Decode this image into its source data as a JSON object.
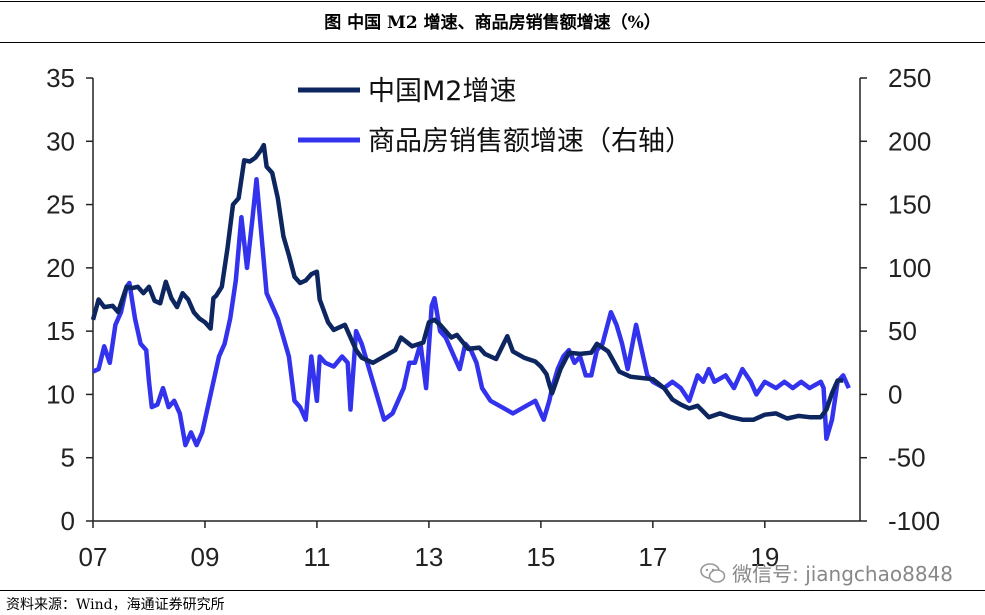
{
  "header": {
    "title": "图  中国 M2 增速、商品房销售额增速（%）"
  },
  "footer": {
    "source": "资料来源：Wind，海通证券研究所"
  },
  "watermark": {
    "text": "微信号: jiangchao8848",
    "icon": "wechat-logo-icon"
  },
  "chart_data": {
    "type": "line",
    "title": "中国 M2 增速、商品房销售额增速（%）",
    "x_tick_labels": [
      "07",
      "09",
      "11",
      "13",
      "15",
      "17",
      "19"
    ],
    "x_ticks": [
      2007,
      2009,
      2011,
      2013,
      2015,
      2017,
      2019
    ],
    "xlim": [
      2007,
      2020.7
    ],
    "y_left": {
      "lim": [
        0,
        35
      ],
      "ticks": [
        0,
        5,
        10,
        15,
        20,
        25,
        30,
        35
      ]
    },
    "y_right": {
      "lim": [
        -100,
        250
      ],
      "ticks": [
        -100,
        -50,
        0,
        50,
        100,
        150,
        200,
        250
      ]
    },
    "grid": false,
    "legend_placement": "top-center",
    "series": [
      {
        "name": "中国M2增速",
        "axis": "left",
        "color": "#0d2660",
        "points": [
          [
            2007.0,
            15.9
          ],
          [
            2007.1,
            17.5
          ],
          [
            2007.2,
            16.9
          ],
          [
            2007.35,
            17.0
          ],
          [
            2007.45,
            16.5
          ],
          [
            2007.5,
            17.2
          ],
          [
            2007.6,
            18.5
          ],
          [
            2007.7,
            18.4
          ],
          [
            2007.8,
            18.5
          ],
          [
            2007.9,
            18.0
          ],
          [
            2008.0,
            18.5
          ],
          [
            2008.1,
            17.4
          ],
          [
            2008.2,
            17.2
          ],
          [
            2008.3,
            18.9
          ],
          [
            2008.4,
            17.6
          ],
          [
            2008.5,
            16.9
          ],
          [
            2008.6,
            18.0
          ],
          [
            2008.7,
            17.5
          ],
          [
            2008.8,
            16.5
          ],
          [
            2008.9,
            16.0
          ],
          [
            2009.0,
            15.7
          ],
          [
            2009.1,
            15.2
          ],
          [
            2009.15,
            17.6
          ],
          [
            2009.2,
            17.8
          ],
          [
            2009.3,
            18.5
          ],
          [
            2009.4,
            21.5
          ],
          [
            2009.5,
            25.0
          ],
          [
            2009.6,
            25.5
          ],
          [
            2009.7,
            28.5
          ],
          [
            2009.8,
            28.4
          ],
          [
            2009.9,
            28.7
          ],
          [
            2010.0,
            29.3
          ],
          [
            2010.05,
            29.7
          ],
          [
            2010.1,
            28.0
          ],
          [
            2010.2,
            27.5
          ],
          [
            2010.3,
            25.5
          ],
          [
            2010.4,
            22.5
          ],
          [
            2010.5,
            21.0
          ],
          [
            2010.6,
            19.3
          ],
          [
            2010.7,
            18.8
          ],
          [
            2010.8,
            19.0
          ],
          [
            2010.9,
            19.5
          ],
          [
            2011.0,
            19.7
          ],
          [
            2011.05,
            17.5
          ],
          [
            2011.2,
            15.7
          ],
          [
            2011.3,
            15.1
          ],
          [
            2011.5,
            15.5
          ],
          [
            2011.6,
            14.5
          ],
          [
            2011.7,
            13.5
          ],
          [
            2011.8,
            12.9
          ],
          [
            2012.0,
            12.5
          ],
          [
            2012.2,
            13.0
          ],
          [
            2012.4,
            13.5
          ],
          [
            2012.5,
            14.5
          ],
          [
            2012.7,
            13.8
          ],
          [
            2012.9,
            14.1
          ],
          [
            2013.0,
            15.7
          ],
          [
            2013.1,
            15.9
          ],
          [
            2013.2,
            15.5
          ],
          [
            2013.4,
            14.5
          ],
          [
            2013.5,
            14.7
          ],
          [
            2013.7,
            13.6
          ],
          [
            2013.9,
            13.7
          ],
          [
            2014.0,
            13.2
          ],
          [
            2014.2,
            12.8
          ],
          [
            2014.4,
            14.6
          ],
          [
            2014.5,
            13.4
          ],
          [
            2014.7,
            12.9
          ],
          [
            2014.9,
            12.6
          ],
          [
            2015.0,
            12.2
          ],
          [
            2015.1,
            11.6
          ],
          [
            2015.15,
            10.8
          ],
          [
            2015.2,
            10.1
          ],
          [
            2015.35,
            12.0
          ],
          [
            2015.5,
            13.3
          ],
          [
            2015.7,
            13.2
          ],
          [
            2015.9,
            13.3
          ],
          [
            2016.0,
            14.0
          ],
          [
            2016.2,
            13.4
          ],
          [
            2016.4,
            11.8
          ],
          [
            2016.6,
            11.4
          ],
          [
            2016.8,
            11.3
          ],
          [
            2017.0,
            11.2
          ],
          [
            2017.2,
            10.5
          ],
          [
            2017.35,
            9.6
          ],
          [
            2017.5,
            9.2
          ],
          [
            2017.65,
            8.9
          ],
          [
            2017.8,
            9.1
          ],
          [
            2018.0,
            8.2
          ],
          [
            2018.2,
            8.5
          ],
          [
            2018.4,
            8.2
          ],
          [
            2018.6,
            8.0
          ],
          [
            2018.8,
            8.0
          ],
          [
            2019.0,
            8.4
          ],
          [
            2019.2,
            8.5
          ],
          [
            2019.4,
            8.1
          ],
          [
            2019.6,
            8.3
          ],
          [
            2019.8,
            8.2
          ],
          [
            2020.0,
            8.2
          ],
          [
            2020.1,
            8.8
          ],
          [
            2020.2,
            10.1
          ],
          [
            2020.3,
            11.1
          ],
          [
            2020.4,
            11.1
          ]
        ]
      },
      {
        "name": "商品房销售额增速（右轴）",
        "axis": "right",
        "color": "#3333ee",
        "points": [
          [
            2007.0,
            18
          ],
          [
            2007.1,
            20
          ],
          [
            2007.2,
            38
          ],
          [
            2007.3,
            25
          ],
          [
            2007.4,
            55
          ],
          [
            2007.5,
            65
          ],
          [
            2007.6,
            85
          ],
          [
            2007.65,
            88
          ],
          [
            2007.75,
            60
          ],
          [
            2007.85,
            40
          ],
          [
            2007.95,
            35
          ],
          [
            2008.0,
            10
          ],
          [
            2008.05,
            -10
          ],
          [
            2008.15,
            -8
          ],
          [
            2008.25,
            5
          ],
          [
            2008.35,
            -10
          ],
          [
            2008.45,
            -5
          ],
          [
            2008.55,
            -15
          ],
          [
            2008.65,
            -40
          ],
          [
            2008.75,
            -30
          ],
          [
            2008.85,
            -40
          ],
          [
            2008.95,
            -30
          ],
          [
            2009.05,
            -10
          ],
          [
            2009.15,
            10
          ],
          [
            2009.25,
            30
          ],
          [
            2009.35,
            40
          ],
          [
            2009.45,
            60
          ],
          [
            2009.55,
            90
          ],
          [
            2009.65,
            140
          ],
          [
            2009.75,
            100
          ],
          [
            2009.85,
            140
          ],
          [
            2009.92,
            170
          ],
          [
            2010.0,
            130
          ],
          [
            2010.1,
            80
          ],
          [
            2010.2,
            70
          ],
          [
            2010.3,
            60
          ],
          [
            2010.4,
            45
          ],
          [
            2010.5,
            30
          ],
          [
            2010.6,
            -5
          ],
          [
            2010.7,
            -10
          ],
          [
            2010.8,
            -20
          ],
          [
            2010.9,
            30
          ],
          [
            2011.0,
            -5
          ],
          [
            2011.05,
            30
          ],
          [
            2011.15,
            25
          ],
          [
            2011.3,
            22
          ],
          [
            2011.45,
            30
          ],
          [
            2011.55,
            25
          ],
          [
            2011.6,
            -12
          ],
          [
            2011.7,
            50
          ],
          [
            2011.8,
            40
          ],
          [
            2011.9,
            25
          ],
          [
            2012.0,
            10
          ],
          [
            2012.1,
            -5
          ],
          [
            2012.2,
            -20
          ],
          [
            2012.35,
            -15
          ],
          [
            2012.45,
            -5
          ],
          [
            2012.55,
            5
          ],
          [
            2012.65,
            25
          ],
          [
            2012.75,
            25
          ],
          [
            2012.85,
            40
          ],
          [
            2012.95,
            5
          ],
          [
            2013.05,
            70
          ],
          [
            2013.1,
            76
          ],
          [
            2013.2,
            50
          ],
          [
            2013.3,
            45
          ],
          [
            2013.45,
            30
          ],
          [
            2013.55,
            20
          ],
          [
            2013.65,
            40
          ],
          [
            2013.75,
            35
          ],
          [
            2013.85,
            25
          ],
          [
            2013.95,
            5
          ],
          [
            2014.1,
            -5
          ],
          [
            2014.3,
            -10
          ],
          [
            2014.5,
            -15
          ],
          [
            2014.7,
            -10
          ],
          [
            2014.9,
            -5
          ],
          [
            2015.0,
            -15
          ],
          [
            2015.05,
            -20
          ],
          [
            2015.15,
            -5
          ],
          [
            2015.2,
            5
          ],
          [
            2015.3,
            20
          ],
          [
            2015.4,
            30
          ],
          [
            2015.5,
            35
          ],
          [
            2015.6,
            25
          ],
          [
            2015.7,
            30
          ],
          [
            2015.8,
            15
          ],
          [
            2015.9,
            15
          ],
          [
            2016.0,
            35
          ],
          [
            2016.1,
            40
          ],
          [
            2016.25,
            65
          ],
          [
            2016.35,
            55
          ],
          [
            2016.45,
            40
          ],
          [
            2016.55,
            20
          ],
          [
            2016.7,
            55
          ],
          [
            2016.8,
            35
          ],
          [
            2016.9,
            15
          ],
          [
            2017.0,
            10
          ],
          [
            2017.2,
            5
          ],
          [
            2017.35,
            10
          ],
          [
            2017.5,
            5
          ],
          [
            2017.65,
            -5
          ],
          [
            2017.8,
            15
          ],
          [
            2017.9,
            10
          ],
          [
            2018.0,
            20
          ],
          [
            2018.1,
            10
          ],
          [
            2018.3,
            15
          ],
          [
            2018.45,
            5
          ],
          [
            2018.6,
            20
          ],
          [
            2018.75,
            10
          ],
          [
            2018.85,
            0
          ],
          [
            2019.0,
            10
          ],
          [
            2019.2,
            5
          ],
          [
            2019.35,
            10
          ],
          [
            2019.5,
            5
          ],
          [
            2019.65,
            10
          ],
          [
            2019.8,
            5
          ],
          [
            2020.0,
            10
          ],
          [
            2020.05,
            5
          ],
          [
            2020.1,
            -35
          ],
          [
            2020.2,
            -20
          ],
          [
            2020.3,
            10
          ],
          [
            2020.4,
            15
          ],
          [
            2020.5,
            5
          ]
        ]
      }
    ]
  }
}
